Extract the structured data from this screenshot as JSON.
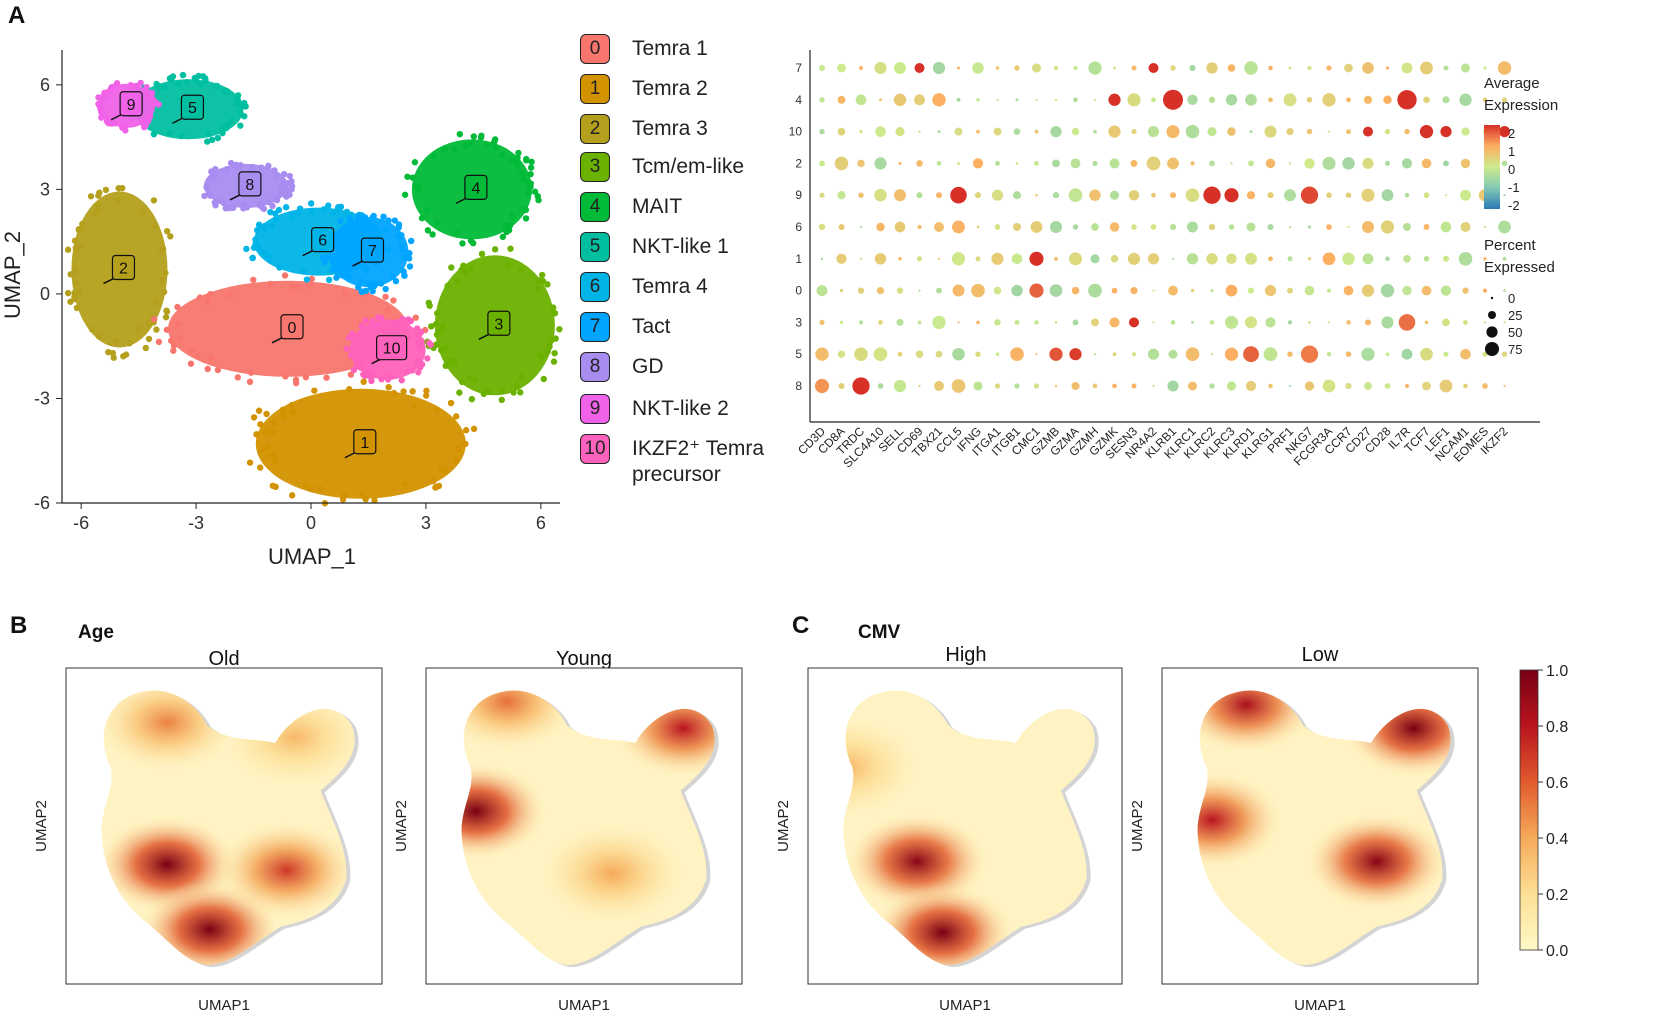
{
  "panel_a": {
    "letter": "A",
    "umap": {
      "xlabel": "UMAP_1",
      "ylabel": "UMAP_2",
      "xticks": [
        "-6",
        "-3",
        "0",
        "3",
        "6"
      ],
      "yticks": [
        "6",
        "3",
        "0",
        "-3",
        "-6"
      ],
      "xlim": [
        -6.5,
        6.5
      ],
      "ylim": [
        -6,
        7
      ]
    },
    "clusters": [
      {
        "id": "0",
        "name": "Temra 1",
        "color": "#F8766D"
      },
      {
        "id": "1",
        "name": "Temra 2",
        "color": "#D39200"
      },
      {
        "id": "2",
        "name": "Temra 3",
        "color": "#B4A01C"
      },
      {
        "id": "3",
        "name": "Tcm/em-like",
        "color": "#6BB100"
      },
      {
        "id": "4",
        "name": "MAIT",
        "color": "#00BA38"
      },
      {
        "id": "5",
        "name": "NKT-like 1",
        "color": "#00BFA0"
      },
      {
        "id": "6",
        "name": "Temra 4",
        "color": "#00B4E8"
      },
      {
        "id": "7",
        "name": "Tact",
        "color": "#00A5FF"
      },
      {
        "id": "8",
        "name": "GD",
        "color": "#A98CF0"
      },
      {
        "id": "9",
        "name": "NKT-like 2",
        "color": "#F062E8"
      },
      {
        "id": "10",
        "name": "IKZF2⁺ Temra precursor",
        "color": "#FF62BC"
      }
    ],
    "cluster_label_line1": "IKZF2⁺ Temra",
    "cluster_label_line2": "precursor"
  },
  "chart_data": [
    {
      "type": "scatter",
      "title": "UMAP clusters",
      "xlabel": "UMAP_1",
      "ylabel": "UMAP_2",
      "xlim": [
        -6.5,
        6.5
      ],
      "ylim": [
        -6,
        7
      ],
      "cluster_centers": [
        {
          "id": "0",
          "x": -0.6,
          "y": -1.0
        },
        {
          "id": "1",
          "x": 1.3,
          "y": -4.3
        },
        {
          "id": "2",
          "x": -5.0,
          "y": 0.7
        },
        {
          "id": "3",
          "x": 4.8,
          "y": -0.9
        },
        {
          "id": "4",
          "x": 4.2,
          "y": 3.0
        },
        {
          "id": "5",
          "x": -3.2,
          "y": 5.3
        },
        {
          "id": "6",
          "x": 0.2,
          "y": 1.5
        },
        {
          "id": "7",
          "x": 1.5,
          "y": 1.2
        },
        {
          "id": "8",
          "x": -1.7,
          "y": 3.1
        },
        {
          "id": "9",
          "x": -4.8,
          "y": 5.4
        },
        {
          "id": "10",
          "x": 2.0,
          "y": -1.6
        }
      ]
    },
    {
      "type": "dotplot",
      "title": "Marker genes",
      "genes": [
        "CD3D",
        "CD8A",
        "TRDC",
        "SLC4A10",
        "SELL",
        "CD69",
        "TBX21",
        "CCL5",
        "IFNG",
        "ITGA1",
        "ITGB1",
        "CMC1",
        "GZMB",
        "GZMA",
        "GZMH",
        "GZMK",
        "SESN3",
        "NR4A2",
        "KLRB1",
        "KLRC1",
        "KLRC2",
        "KLRC3",
        "KLRD1",
        "KLRG1",
        "PRF1",
        "NKG7",
        "FCGR3A",
        "CCR7",
        "CD27",
        "CD28",
        "IL7R",
        "TCF7",
        "LEF1",
        "NCAM1",
        "EOMES",
        "IKZF2"
      ],
      "clusters": [
        "7",
        "4",
        "10",
        "2",
        "9",
        "6",
        "1",
        "0",
        "3",
        "5",
        "8"
      ],
      "color_legend_title": [
        "Average",
        "Expression"
      ],
      "color_ticks": [
        "2",
        "1",
        "0",
        "-1",
        "-2"
      ],
      "size_legend_title": [
        "Percent",
        "Expressed"
      ],
      "size_ticks": [
        "0",
        "25",
        "50",
        "75"
      ],
      "highlights": [
        {
          "cluster": "7",
          "gene": "CD69",
          "expr": 2.2,
          "pct": 20
        },
        {
          "cluster": "7",
          "gene": "NR4A2",
          "expr": 2.2,
          "pct": 20
        },
        {
          "cluster": "4",
          "gene": "KLRB1",
          "expr": 2.3,
          "pct": 80
        },
        {
          "cluster": "4",
          "gene": "IL7R",
          "expr": 2.2,
          "pct": 75
        },
        {
          "cluster": "4",
          "gene": "GZMK",
          "expr": 2.0,
          "pct": 30
        },
        {
          "cluster": "10",
          "gene": "CD27",
          "expr": 2.0,
          "pct": 20
        },
        {
          "cluster": "10",
          "gene": "TCF7",
          "expr": 2.0,
          "pct": 35
        },
        {
          "cluster": "10",
          "gene": "LEF1",
          "expr": 2.0,
          "pct": 25
        },
        {
          "cluster": "10",
          "gene": "IKZF2",
          "expr": 2.0,
          "pct": 25
        },
        {
          "cluster": "9",
          "gene": "CCL5",
          "expr": 2.0,
          "pct": 55
        },
        {
          "cluster": "9",
          "gene": "KLRC2",
          "expr": 2.2,
          "pct": 60
        },
        {
          "cluster": "9",
          "gene": "KLRC3",
          "expr": 2.0,
          "pct": 40
        },
        {
          "cluster": "9",
          "gene": "NKG7",
          "expr": 1.8,
          "pct": 60
        },
        {
          "cluster": "1",
          "gene": "CMC1",
          "expr": 2.0,
          "pct": 40
        },
        {
          "cluster": "0",
          "gene": "CMC1",
          "expr": 1.6,
          "pct": 40
        },
        {
          "cluster": "3",
          "gene": "IL7R",
          "expr": 1.5,
          "pct": 55
        },
        {
          "cluster": "3",
          "gene": "SESN3",
          "expr": 2.0,
          "pct": 20
        },
        {
          "cluster": "5",
          "gene": "GZMB",
          "expr": 1.7,
          "pct": 35
        },
        {
          "cluster": "5",
          "gene": "GZMA",
          "expr": 1.9,
          "pct": 30
        },
        {
          "cluster": "5",
          "gene": "KLRD1",
          "expr": 1.6,
          "pct": 50
        },
        {
          "cluster": "5",
          "gene": "NKG7",
          "expr": 1.4,
          "pct": 60
        },
        {
          "cluster": "8",
          "gene": "TRDC",
          "expr": 2.3,
          "pct": 60
        },
        {
          "cluster": "8",
          "gene": "CD3D",
          "expr": 1.2,
          "pct": 40
        }
      ]
    },
    {
      "type": "heatmap",
      "title": "Density UMAPs",
      "panels": [
        {
          "group": "Age",
          "subtitle": "Old",
          "hotspots": [
            {
              "x": 0.3,
              "y": 0.63,
              "v": 1.0
            },
            {
              "x": 0.45,
              "y": 0.85,
              "v": 1.0
            },
            {
              "x": 0.72,
              "y": 0.65,
              "v": 0.7
            },
            {
              "x": 0.3,
              "y": 0.15,
              "v": 0.5
            },
            {
              "x": 0.75,
              "y": 0.2,
              "v": 0.35
            }
          ]
        },
        {
          "group": "Age",
          "subtitle": "Young",
          "hotspots": [
            {
              "x": 0.12,
              "y": 0.45,
              "v": 1.0
            },
            {
              "x": 0.85,
              "y": 0.17,
              "v": 0.8
            },
            {
              "x": 0.23,
              "y": 0.08,
              "v": 0.55
            },
            {
              "x": 0.6,
              "y": 0.66,
              "v": 0.4
            }
          ]
        },
        {
          "group": "CMV",
          "subtitle": "High",
          "hotspots": [
            {
              "x": 0.33,
              "y": 0.62,
              "v": 0.95
            },
            {
              "x": 0.42,
              "y": 0.86,
              "v": 1.0
            },
            {
              "x": 0.08,
              "y": 0.3,
              "v": 0.35
            }
          ]
        },
        {
          "group": "CMV",
          "subtitle": "Low",
          "hotspots": [
            {
              "x": 0.24,
              "y": 0.09,
              "v": 0.85
            },
            {
              "x": 0.83,
              "y": 0.17,
              "v": 1.0
            },
            {
              "x": 0.12,
              "y": 0.48,
              "v": 0.8
            },
            {
              "x": 0.7,
              "y": 0.62,
              "v": 0.95
            }
          ]
        }
      ],
      "xlabel": "UMAP1",
      "ylabel": "UMAP2",
      "colorbar_ticks": [
        "1.0",
        "0.8",
        "0.6",
        "0.4",
        "0.2",
        "0.0"
      ],
      "colorbar_range": [
        0,
        1
      ]
    }
  ],
  "panel_b": {
    "letter": "B",
    "group": "Age",
    "subtitles": [
      "Old",
      "Young"
    ]
  },
  "panel_c": {
    "letter": "C",
    "group": "CMV",
    "subtitles": [
      "High",
      "Low"
    ]
  },
  "density_axis": {
    "xlabel": "UMAP1",
    "ylabel": "UMAP2"
  }
}
